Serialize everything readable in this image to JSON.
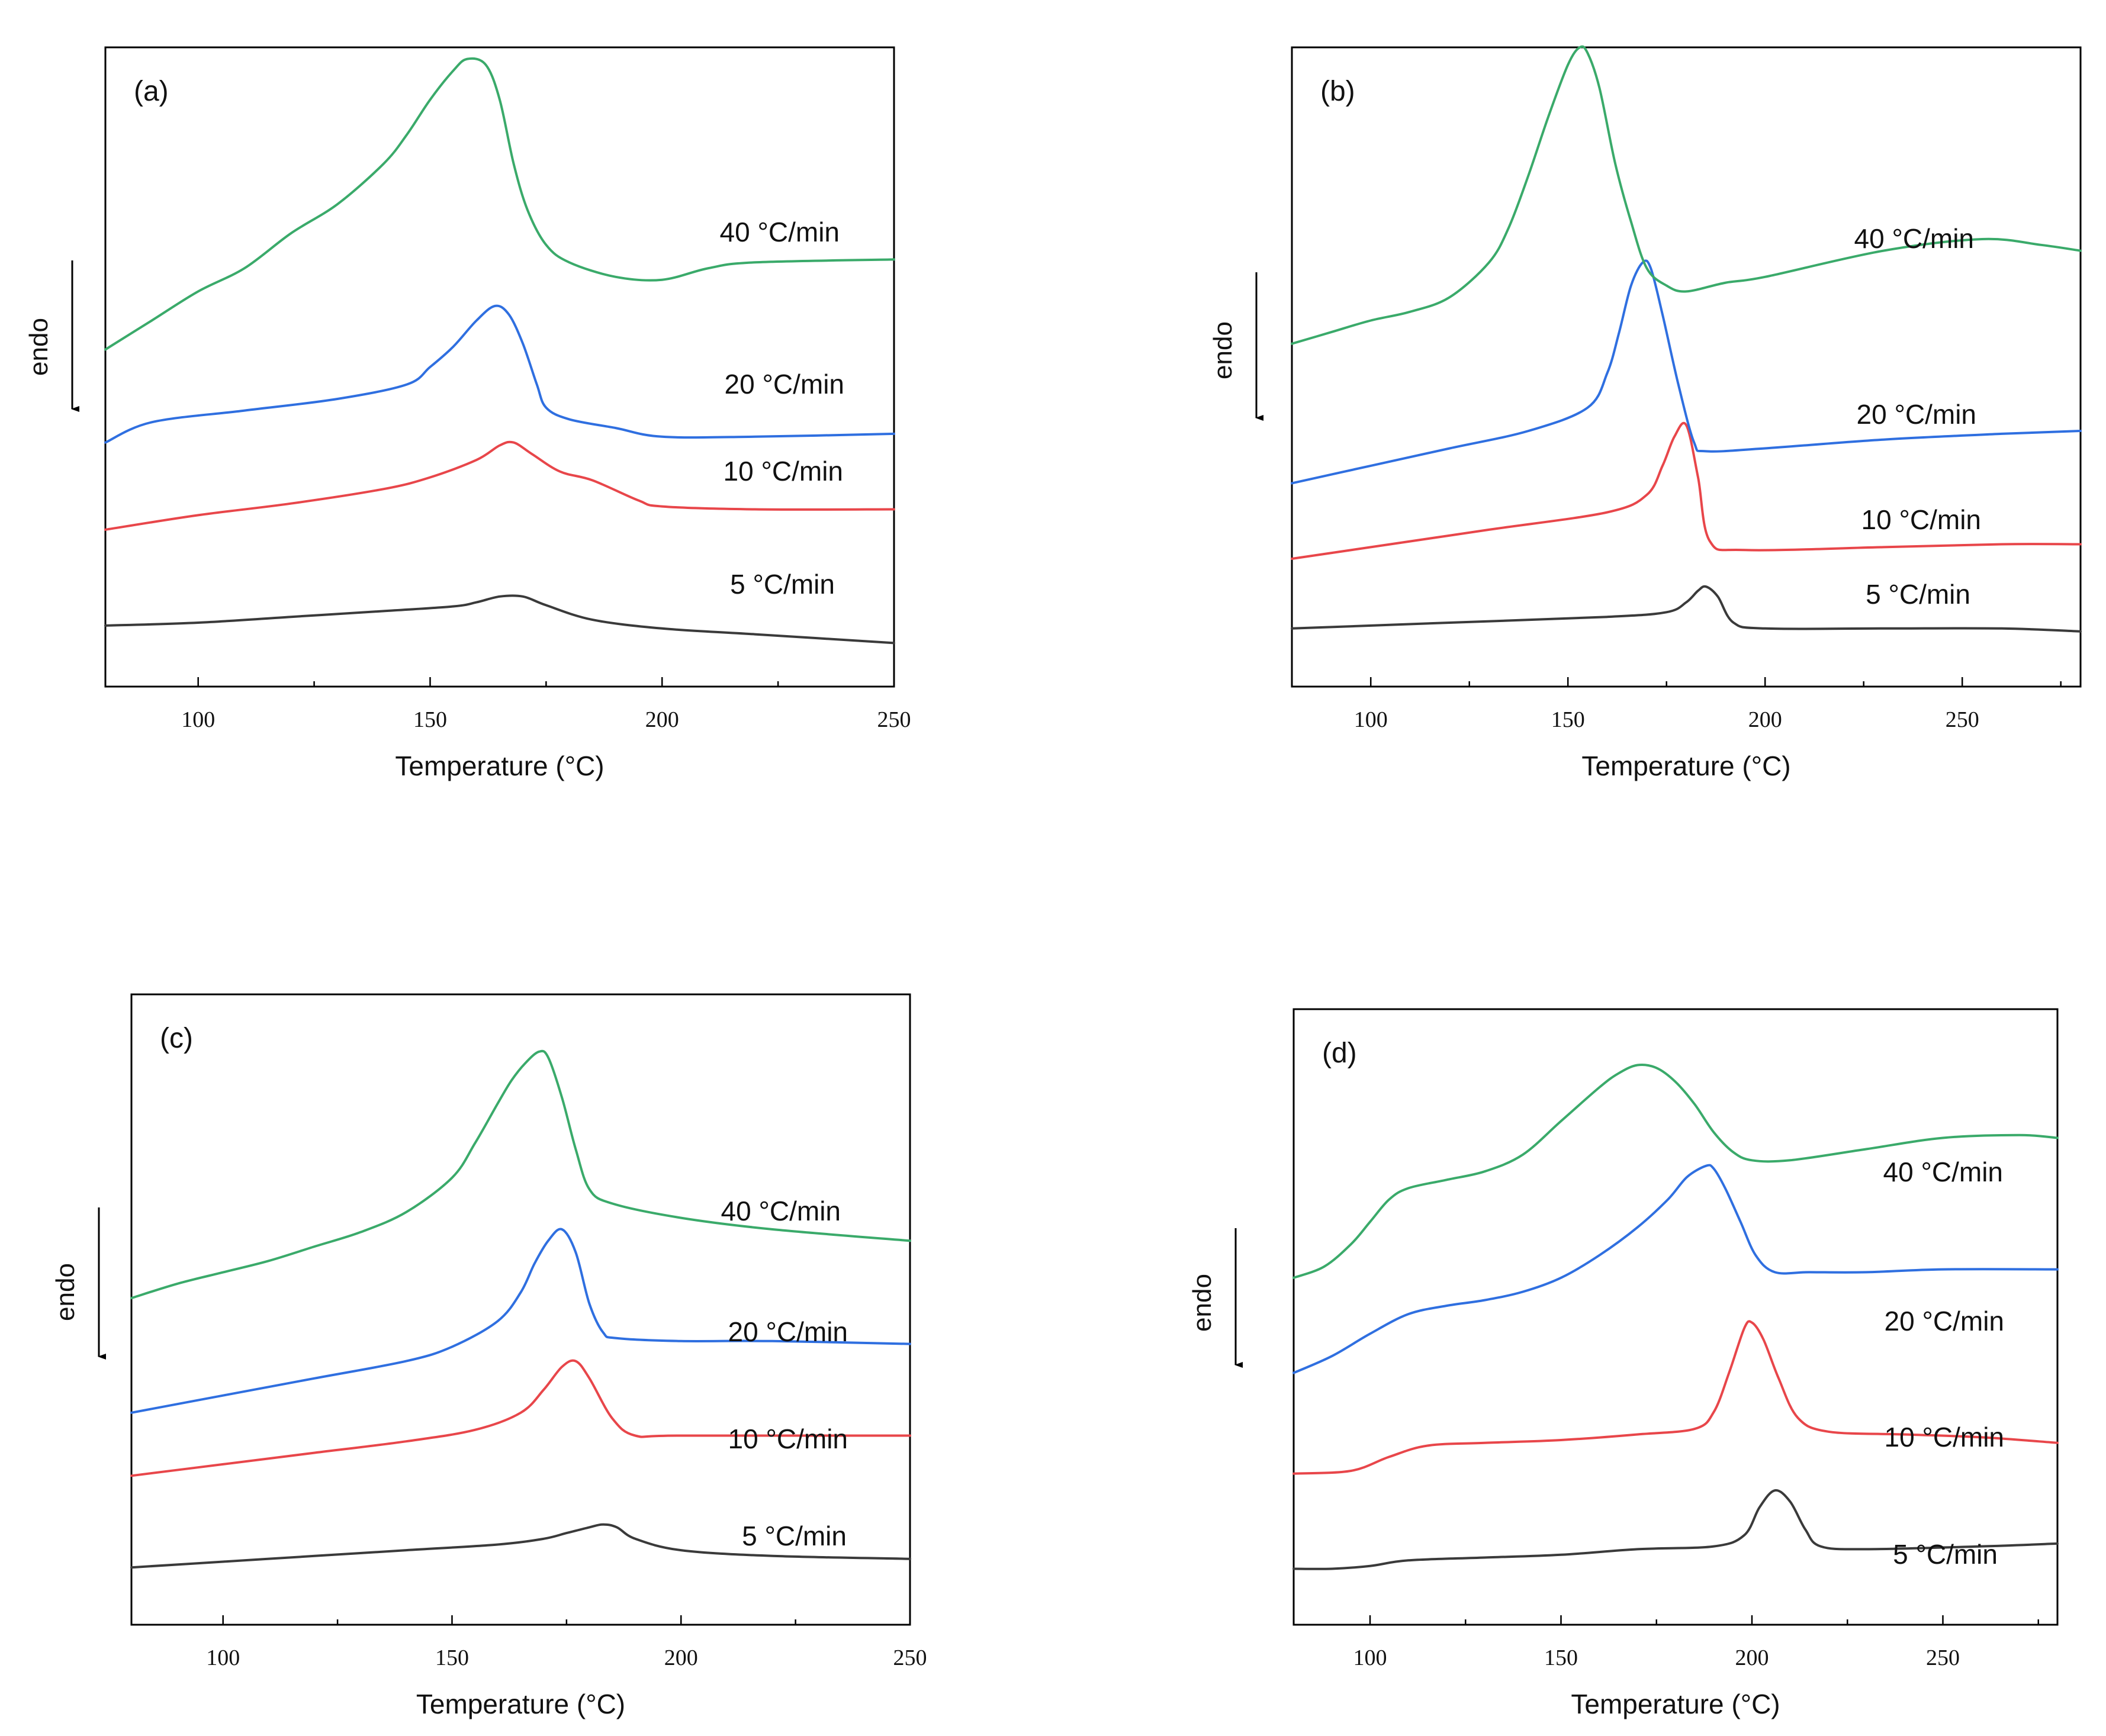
{
  "chart_data": [
    {
      "type": "line",
      "panel_label": "(a)",
      "xlabel": "Temperature (°C)",
      "ylabel": "endo",
      "xlim": [
        80,
        250
      ],
      "xticks": [
        100,
        150,
        200,
        250
      ],
      "ylim": [
        -1,
        10
      ],
      "series": [
        {
          "name": "5 °C/min",
          "color": "#3a3a3a",
          "x": [
            80,
            100,
            120,
            140,
            155,
            160,
            165,
            170,
            175,
            185,
            200,
            220,
            250
          ],
          "y": [
            0.05,
            0.1,
            0.2,
            0.3,
            0.38,
            0.45,
            0.55,
            0.55,
            0.4,
            0.15,
            0.0,
            -0.1,
            -0.25
          ]
        },
        {
          "name": "10 °C/min",
          "color": "#e8464a",
          "x": [
            80,
            100,
            120,
            140,
            150,
            160,
            165,
            168,
            172,
            178,
            185,
            195,
            200,
            220,
            250
          ],
          "y": [
            1.7,
            1.95,
            2.15,
            2.4,
            2.6,
            2.9,
            3.15,
            3.2,
            3.0,
            2.7,
            2.55,
            2.2,
            2.1,
            2.05,
            2.05
          ]
        },
        {
          "name": "20 °C/min",
          "color": "#2f6fe0",
          "x": [
            80,
            90,
            110,
            130,
            145,
            150,
            155,
            160,
            164,
            167,
            170,
            173,
            175,
            180,
            190,
            200,
            220,
            250
          ],
          "y": [
            3.2,
            3.55,
            3.75,
            3.95,
            4.2,
            4.5,
            4.85,
            5.3,
            5.55,
            5.4,
            4.9,
            4.2,
            3.8,
            3.6,
            3.45,
            3.3,
            3.3,
            3.35
          ]
        },
        {
          "name": "40 °C/min",
          "color": "#3aaa6a",
          "x": [
            80,
            90,
            100,
            110,
            120,
            130,
            140,
            145,
            150,
            155,
            158,
            162,
            165,
            168,
            171,
            175,
            180,
            190,
            200,
            210,
            220,
            250
          ],
          "y": [
            4.8,
            5.3,
            5.8,
            6.2,
            6.8,
            7.3,
            8.0,
            8.5,
            9.1,
            9.6,
            9.8,
            9.7,
            9.1,
            8.0,
            7.2,
            6.6,
            6.3,
            6.05,
            6.0,
            6.2,
            6.3,
            6.35
          ]
        }
      ],
      "annotations": [
        "40 °C/min",
        "20 °C/min",
        "10 °C/min",
        "5 °C/min"
      ]
    },
    {
      "type": "line",
      "panel_label": "(b)",
      "xlabel": "Temperature (°C)",
      "ylabel": "endo",
      "xlim": [
        80,
        280
      ],
      "xticks": [
        100,
        150,
        200,
        250
      ],
      "ylim": [
        -1,
        10
      ],
      "series": [
        {
          "name": "5 °C/min",
          "color": "#3a3a3a",
          "x": [
            80,
            120,
            160,
            175,
            180,
            183,
            185,
            188,
            192,
            200,
            230,
            260,
            280
          ],
          "y": [
            0.0,
            0.1,
            0.2,
            0.28,
            0.45,
            0.65,
            0.72,
            0.55,
            0.1,
            0.0,
            0.0,
            0.0,
            -0.05
          ]
        },
        {
          "name": "10 °C/min",
          "color": "#e8464a",
          "x": [
            80,
            100,
            130,
            160,
            170,
            174,
            177,
            180,
            183,
            186,
            195,
            230,
            260,
            280
          ],
          "y": [
            1.2,
            1.4,
            1.7,
            2.0,
            2.3,
            2.8,
            3.3,
            3.5,
            2.6,
            1.5,
            1.35,
            1.4,
            1.45,
            1.45
          ]
        },
        {
          "name": "20 °C/min",
          "color": "#2f6fe0",
          "x": [
            80,
            100,
            120,
            140,
            155,
            160,
            163,
            166,
            169,
            171,
            174,
            178,
            182,
            185,
            200,
            230,
            260,
            280
          ],
          "y": [
            2.5,
            2.8,
            3.1,
            3.4,
            3.8,
            4.4,
            5.1,
            5.9,
            6.3,
            6.2,
            5.4,
            4.2,
            3.2,
            3.05,
            3.1,
            3.25,
            3.35,
            3.4
          ]
        },
        {
          "name": "40 °C/min",
          "color": "#3aaa6a",
          "x": [
            80,
            90,
            100,
            110,
            120,
            130,
            135,
            140,
            145,
            150,
            153,
            155,
            158,
            162,
            166,
            170,
            175,
            180,
            190,
            200,
            230,
            255,
            270,
            280
          ],
          "y": [
            4.9,
            5.1,
            5.3,
            5.45,
            5.7,
            6.3,
            6.9,
            7.8,
            8.8,
            9.7,
            10.0,
            9.9,
            9.3,
            8.0,
            7.0,
            6.2,
            5.9,
            5.8,
            5.95,
            6.05,
            6.5,
            6.7,
            6.6,
            6.5
          ]
        }
      ],
      "annotations": [
        "40 °C/min",
        "20 °C/min",
        "10 °C/min",
        "5 °C/min"
      ]
    },
    {
      "type": "line",
      "panel_label": "(c)",
      "xlabel": "Temperature (°C)",
      "ylabel": "endo",
      "xlim": [
        80,
        250
      ],
      "xticks": [
        100,
        150,
        200,
        250
      ],
      "ylim": [
        -1,
        10
      ],
      "series": [
        {
          "name": "5 °C/min",
          "color": "#3a3a3a",
          "x": [
            80,
            100,
            120,
            140,
            160,
            170,
            175,
            180,
            183,
            186,
            190,
            200,
            220,
            250
          ],
          "y": [
            0.0,
            0.1,
            0.2,
            0.3,
            0.4,
            0.5,
            0.6,
            0.7,
            0.75,
            0.7,
            0.5,
            0.3,
            0.2,
            0.15
          ]
        },
        {
          "name": "10 °C/min",
          "color": "#e8464a",
          "x": [
            80,
            100,
            120,
            140,
            155,
            165,
            170,
            174,
            177,
            180,
            185,
            190,
            200,
            250
          ],
          "y": [
            1.6,
            1.8,
            2.0,
            2.2,
            2.4,
            2.7,
            3.1,
            3.5,
            3.6,
            3.3,
            2.6,
            2.3,
            2.3,
            2.3
          ]
        },
        {
          "name": "20 °C/min",
          "color": "#2f6fe0",
          "x": [
            80,
            100,
            120,
            140,
            150,
            160,
            165,
            168,
            171,
            174,
            177,
            180,
            183,
            186,
            200,
            220,
            250
          ],
          "y": [
            2.7,
            3.0,
            3.3,
            3.6,
            3.85,
            4.3,
            4.8,
            5.3,
            5.7,
            5.9,
            5.5,
            4.6,
            4.1,
            4.0,
            3.95,
            3.95,
            3.9
          ]
        },
        {
          "name": "40 °C/min",
          "color": "#3aaa6a",
          "x": [
            80,
            90,
            100,
            110,
            120,
            130,
            140,
            150,
            155,
            160,
            163,
            166,
            169,
            171,
            174,
            177,
            180,
            185,
            200,
            220,
            250
          ],
          "y": [
            4.7,
            4.95,
            5.15,
            5.35,
            5.6,
            5.85,
            6.2,
            6.8,
            7.4,
            8.1,
            8.5,
            8.8,
            9.0,
            8.9,
            8.2,
            7.3,
            6.6,
            6.35,
            6.1,
            5.9,
            5.7
          ]
        }
      ],
      "annotations": [
        "40 °C/min",
        "20 °C/min",
        "10 °C/min",
        "5 °C/min"
      ]
    },
    {
      "type": "line",
      "panel_label": "(d)",
      "xlabel": "Temperature (°C)",
      "ylabel": "endo",
      "xlim": [
        80,
        280
      ],
      "xticks": [
        100,
        150,
        200,
        250
      ],
      "ylim": [
        -1,
        10
      ],
      "series": [
        {
          "name": "5 °C/min",
          "color": "#3a3a3a",
          "x": [
            80,
            90,
            100,
            110,
            130,
            150,
            170,
            190,
            198,
            202,
            206,
            210,
            214,
            218,
            230,
            260,
            280
          ],
          "y": [
            0.0,
            0.0,
            0.05,
            0.15,
            0.2,
            0.25,
            0.35,
            0.4,
            0.6,
            1.1,
            1.4,
            1.2,
            0.7,
            0.4,
            0.35,
            0.4,
            0.45
          ]
        },
        {
          "name": "10 °C/min",
          "color": "#e8464a",
          "x": [
            80,
            95,
            105,
            115,
            130,
            150,
            170,
            185,
            190,
            194,
            198,
            200,
            203,
            207,
            212,
            220,
            240,
            260,
            280
          ],
          "y": [
            1.7,
            1.75,
            2.0,
            2.2,
            2.25,
            2.3,
            2.4,
            2.5,
            2.8,
            3.5,
            4.3,
            4.4,
            4.1,
            3.4,
            2.7,
            2.45,
            2.4,
            2.35,
            2.25
          ]
        },
        {
          "name": "20 °C/min",
          "color": "#2f6fe0",
          "x": [
            80,
            90,
            100,
            110,
            120,
            130,
            140,
            150,
            160,
            170,
            178,
            183,
            188,
            190,
            193,
            197,
            201,
            206,
            215,
            230,
            250,
            280
          ],
          "y": [
            3.5,
            3.8,
            4.2,
            4.55,
            4.7,
            4.8,
            4.95,
            5.2,
            5.6,
            6.1,
            6.6,
            7.0,
            7.2,
            7.15,
            6.8,
            6.2,
            5.6,
            5.3,
            5.3,
            5.3,
            5.35,
            5.35
          ]
        },
        {
          "name": "40 °C/min",
          "color": "#3aaa6a",
          "x": [
            80,
            88,
            95,
            100,
            105,
            110,
            120,
            130,
            140,
            150,
            160,
            165,
            170,
            175,
            180,
            185,
            190,
            195,
            200,
            210,
            230,
            250,
            270,
            280
          ],
          "y": [
            5.2,
            5.4,
            5.8,
            6.2,
            6.6,
            6.8,
            6.95,
            7.1,
            7.4,
            8.0,
            8.6,
            8.85,
            9.0,
            8.95,
            8.7,
            8.3,
            7.8,
            7.45,
            7.3,
            7.3,
            7.5,
            7.7,
            7.75,
            7.7
          ]
        }
      ],
      "annotations": [
        "40 °C/min",
        "20 °C/min",
        "10 °C/min",
        "5 °C/min"
      ]
    }
  ]
}
